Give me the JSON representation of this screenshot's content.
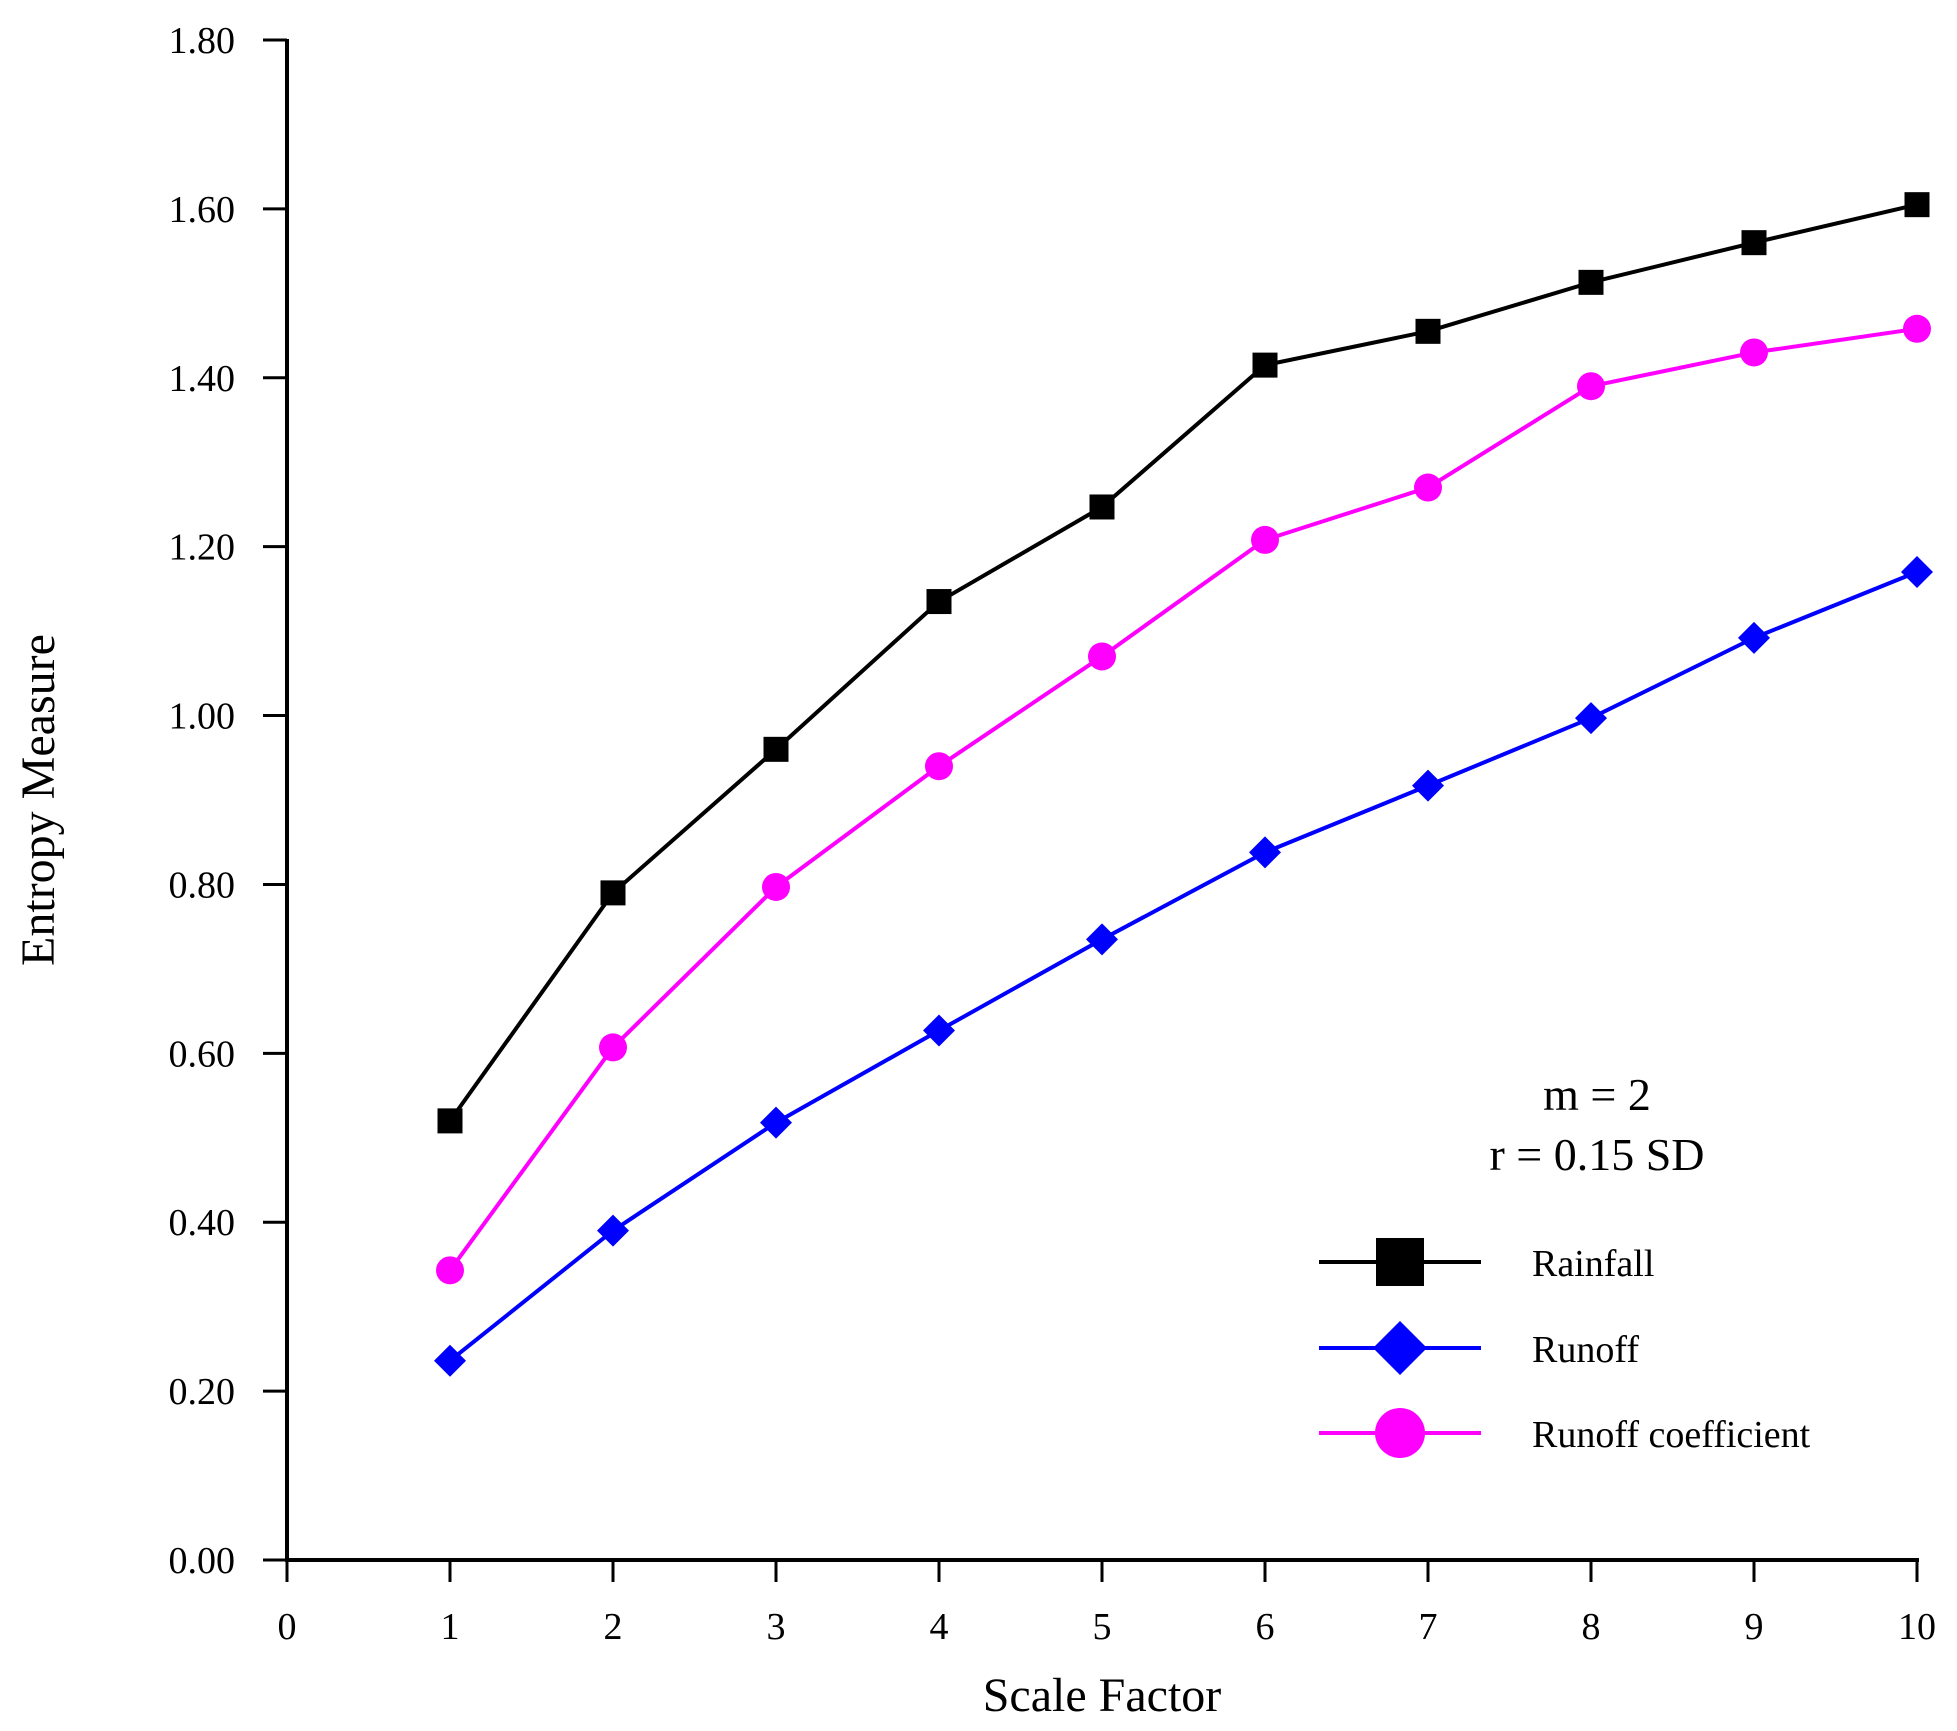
{
  "chart_data": {
    "type": "line",
    "title": "",
    "xlabel": "Scale Factor",
    "ylabel": "Entropy Measure",
    "xlim": [
      0,
      10
    ],
    "ylim": [
      0,
      1.8
    ],
    "xticks": [
      "0",
      "1",
      "2",
      "3",
      "4",
      "5",
      "6",
      "7",
      "8",
      "9",
      "10"
    ],
    "yticks": [
      "0.00",
      "0.20",
      "0.40",
      "0.60",
      "0.80",
      "1.00",
      "1.20",
      "1.40",
      "1.60",
      "1.80"
    ],
    "grid": false,
    "legend_position": "bottom-right",
    "annotations": [
      "m = 2",
      "r = 0.15 SD"
    ],
    "x": [
      1,
      2,
      3,
      4,
      5,
      6,
      7,
      8,
      9,
      10
    ],
    "series": [
      {
        "name": "Rainfall",
        "color": "#000000",
        "marker": "square",
        "values": [
          0.52,
          0.79,
          0.96,
          1.135,
          1.247,
          1.415,
          1.455,
          1.513,
          1.56,
          1.605
        ]
      },
      {
        "name": "Runoff",
        "color": "#0000ff",
        "marker": "diamond",
        "values": [
          0.236,
          0.39,
          0.518,
          0.627,
          0.735,
          0.838,
          0.917,
          0.997,
          1.092,
          1.17
        ]
      },
      {
        "name": "Runoff coefficient",
        "color": "#ff00ff",
        "marker": "circle",
        "values": [
          0.343,
          0.607,
          0.797,
          0.94,
          1.07,
          1.208,
          1.27,
          1.39,
          1.43,
          1.458
        ]
      }
    ]
  }
}
